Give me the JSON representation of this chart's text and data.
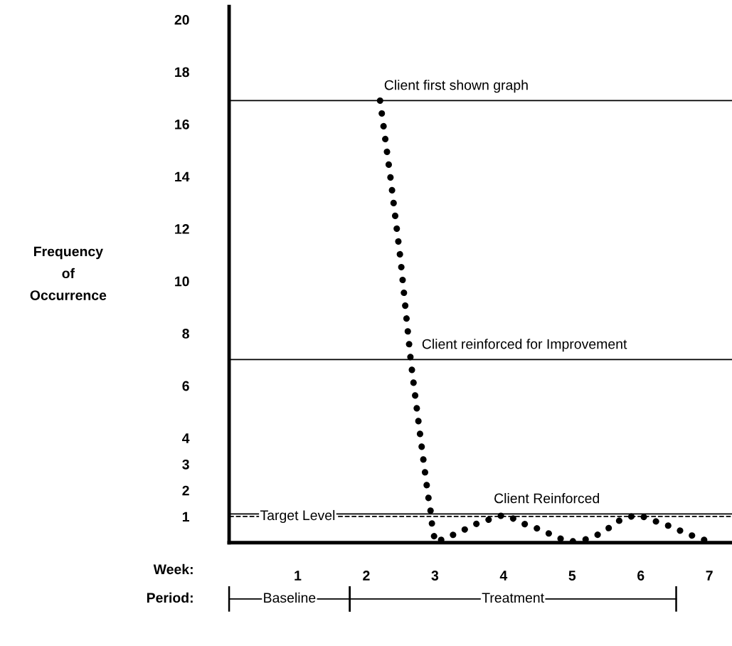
{
  "chart_data": {
    "type": "line",
    "xlim": [
      0,
      7.33
    ],
    "xticks": [
      1,
      2,
      3,
      4,
      5,
      6,
      7
    ],
    "ylim": [
      0,
      20.5
    ],
    "yticks": [
      1,
      2,
      3,
      4,
      6,
      8,
      10,
      12,
      14,
      16,
      18,
      20
    ],
    "series": [
      {
        "color": "#000000",
        "line_style": "dotted",
        "x": [
          2.2,
          2.35,
          2.5,
          2.65,
          2.8,
          2.9,
          2.95,
          2.96,
          3.01,
          3.16,
          3.32,
          3.47,
          3.63,
          3.81,
          3.99,
          4.12,
          4.26,
          4.44,
          4.57,
          4.75,
          4.92,
          5.06,
          5.24,
          5.37,
          5.53,
          5.65,
          5.79,
          5.94,
          6.09,
          6.28,
          6.46,
          6.62,
          6.77,
          6.93
        ],
        "values": [
          16.9,
          14,
          10.8,
          6.9,
          3.8,
          1.8,
          1.0,
          0.55,
          0,
          0.2,
          0.35,
          0.55,
          0.75,
          0.9,
          1.05,
          0.95,
          0.75,
          0.6,
          0.45,
          0.25,
          0.05,
          0.05,
          0.15,
          0.3,
          0.55,
          0.8,
          0.95,
          1.05,
          0.95,
          0.75,
          0.6,
          0.4,
          0.25,
          0.1
        ]
      }
    ],
    "ref_lines": [
      {
        "axis": "y",
        "value": 16.9,
        "color": "#000000",
        "line_style": "solid"
      },
      {
        "axis": "y",
        "value": 7,
        "color": "#000000",
        "line_style": "solid"
      },
      {
        "axis": "y",
        "value": 1.1,
        "color": "#000000",
        "line_style": "solid"
      },
      {
        "axis": "y",
        "value": 1,
        "color": "#000000",
        "line_style": "dashed"
      }
    ],
    "annotations": [
      {
        "text": "Client first shown graph",
        "x": 2.2,
        "y": 16.9
      },
      {
        "text": "Client reinforced for Improvement",
        "x": 2.75,
        "y": 7
      },
      {
        "text": "Client Reinforced",
        "x": 3.8,
        "y": 1.1
      },
      {
        "text": "Target Level",
        "x": 0.45,
        "y": 1
      },
      "Week:",
      "Period:",
      "Frequency\nof\nOccurrence",
      "Baseline",
      "Treatment"
    ],
    "grid": false,
    "legend": false
  }
}
